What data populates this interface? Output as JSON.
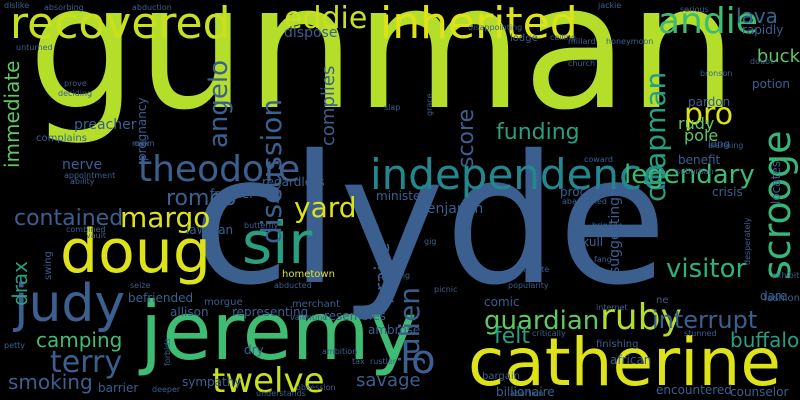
{
  "words": [
    {
      "text": "gunman",
      "color": "#b5de2b"
    },
    {
      "text": "clyde",
      "color": "#3b5f8f"
    },
    {
      "text": "jeremy",
      "color": "#3fbc73"
    },
    {
      "text": "catherine",
      "color": "#dde318"
    },
    {
      "text": "recovered",
      "color": "#c8e020"
    },
    {
      "text": "inherited",
      "color": "#dde318"
    },
    {
      "text": "sir",
      "color": "#27a082"
    },
    {
      "text": "doug",
      "color": "#dde318"
    },
    {
      "text": "judy",
      "color": "#3b5f8f"
    },
    {
      "text": "independence",
      "color": "#24868e"
    },
    {
      "text": "theodore",
      "color": "#3b5f8f"
    },
    {
      "text": "eddie",
      "color": "#c8e020"
    },
    {
      "text": "andie",
      "color": "#3fbc73"
    },
    {
      "text": "lava",
      "color": "#31688e"
    },
    {
      "text": "twelve",
      "color": "#c8e020"
    },
    {
      "text": "ruby",
      "color": "#b5de2b"
    },
    {
      "text": "scrooge",
      "color": "#35b779"
    },
    {
      "text": "visitor",
      "color": "#2db27d"
    },
    {
      "text": "guardian",
      "color": "#5ec962"
    },
    {
      "text": "interrupt",
      "color": "#3b5f8f"
    },
    {
      "text": "legendary",
      "color": "#3fbc73"
    },
    {
      "text": "terry",
      "color": "#3b5f8f"
    },
    {
      "text": "camping",
      "color": "#3fbc73"
    },
    {
      "text": "smoking",
      "color": "#3b5f8f"
    },
    {
      "text": "lo",
      "color": "#3b5f8f"
    },
    {
      "text": "felt",
      "color": "#27a082"
    },
    {
      "text": "buffalo",
      "color": "#27a082"
    },
    {
      "text": "savage",
      "color": "#3b5f8f"
    },
    {
      "text": "praise",
      "color": "#3b5f8f"
    },
    {
      "text": "julien",
      "color": "#3b5f8f"
    },
    {
      "text": "yard",
      "color": "#dde318"
    },
    {
      "text": "romeo",
      "color": "#3b5f8f"
    },
    {
      "text": "margo",
      "color": "#dde318"
    },
    {
      "text": "contained",
      "color": "#3b5f8f"
    },
    {
      "text": "drax",
      "color": "#27a082"
    },
    {
      "text": "angelo",
      "color": "#3b5f8f"
    },
    {
      "text": "discussion",
      "color": "#3b5f8f"
    },
    {
      "text": "complies",
      "color": "#3b5f8f"
    },
    {
      "text": "score",
      "color": "#3b5f8f"
    },
    {
      "text": "chapman",
      "color": "#27a082"
    },
    {
      "text": "pro",
      "color": "#dde318"
    },
    {
      "text": "funding",
      "color": "#27a082"
    },
    {
      "text": "immediate",
      "color": "#5ec962"
    },
    {
      "text": "preacher",
      "color": "#3b5f8f"
    },
    {
      "text": "nerve",
      "color": "#3b5f8f"
    },
    {
      "text": "benjamin",
      "color": "#3b5f8f"
    },
    {
      "text": "minister",
      "color": "#3b5f8f"
    },
    {
      "text": "regardless",
      "color": "#3b5f8f"
    },
    {
      "text": "frontier",
      "color": "#3b5f8f"
    },
    {
      "text": "lawman",
      "color": "#3b5f8f"
    },
    {
      "text": "befriended",
      "color": "#3b5f8f"
    },
    {
      "text": "allison",
      "color": "#3b5f8f"
    },
    {
      "text": "representing",
      "color": "#3b5f8f"
    },
    {
      "text": "resembles",
      "color": "#3b5f8f"
    },
    {
      "text": "dry",
      "color": "#3b5f8f"
    },
    {
      "text": "sympathy",
      "color": "#3b5f8f"
    },
    {
      "text": "barrier",
      "color": "#3b5f8f"
    },
    {
      "text": "hometown",
      "color": "#dde318"
    },
    {
      "text": "ambrose",
      "color": "#3b5f8f"
    },
    {
      "text": "comic",
      "color": "#3b5f8f"
    },
    {
      "text": "african",
      "color": "#3b5f8f"
    },
    {
      "text": "encountered",
      "color": "#3b5f8f"
    },
    {
      "text": "dare",
      "color": "#3b5f8f"
    },
    {
      "text": "skull",
      "color": "#3b5f8f"
    },
    {
      "text": "procedure",
      "color": "#3b5f8f"
    },
    {
      "text": "suggesting",
      "color": "#3b5f8f"
    },
    {
      "text": "crisis",
      "color": "#3b5f8f"
    },
    {
      "text": "benefit",
      "color": "#3b5f8f"
    },
    {
      "text": "rudy",
      "color": "#5ec962"
    },
    {
      "text": "pole",
      "color": "#5ec962"
    },
    {
      "text": "pardon",
      "color": "#3b5f8f"
    },
    {
      "text": "buck",
      "color": "#5ec962"
    },
    {
      "text": "potion",
      "color": "#3b5f8f"
    },
    {
      "text": "rapidly",
      "color": "#3b5f8f"
    },
    {
      "text": "lodge",
      "color": "#3b5f8f"
    },
    {
      "text": "dispose",
      "color": "#3b5f8f"
    },
    {
      "text": "billionaire",
      "color": "#3b5f8f"
    },
    {
      "text": "counselor",
      "color": "#3b5f8f"
    },
    {
      "text": "locates",
      "color": "#3b5f8f"
    },
    {
      "text": "pregnancy",
      "color": "#3b5f8f"
    },
    {
      "text": "complains",
      "color": "#3b5f8f"
    },
    {
      "text": "swing",
      "color": "#3b5f8f"
    },
    {
      "text": "morgue",
      "color": "#3b5f8f"
    },
    {
      "text": "merchant",
      "color": "#3b5f8f"
    },
    {
      "text": "adding",
      "color": "#3b5f8f"
    },
    {
      "text": "lung",
      "color": "#3b5f8f"
    },
    {
      "text": "ne",
      "color": "#3b5f8f"
    },
    {
      "text": "bargain",
      "color": "#3b5f8f"
    },
    {
      "text": "finishing",
      "color": "#3b5f8f"
    },
    {
      "text": "fashion",
      "color": "#3b5f8f"
    },
    {
      "text": "exhibit",
      "color": "#3b5f8f"
    },
    {
      "text": "valentine",
      "color": "#3b5f8f"
    },
    {
      "text": "butterfly",
      "color": "#3b5f8f"
    },
    {
      "text": "forbids",
      "color": "#3b5f8f"
    },
    {
      "text": "abandoned",
      "color": "#3b5f8f"
    },
    {
      "text": "serious",
      "color": "#3b5f8f"
    },
    {
      "text": "church",
      "color": "#3b5f8f"
    },
    {
      "text": "doubt",
      "color": "#3b5f8f"
    },
    {
      "text": "bronson",
      "color": "#3b5f8f"
    },
    {
      "text": "grace",
      "color": "#3b5f8f"
    },
    {
      "text": "ceiling",
      "color": "#3b5f8f"
    },
    {
      "text": "honeymoon",
      "color": "#3b5f8f"
    },
    {
      "text": "brigade",
      "color": "#3b5f8f"
    },
    {
      "text": "popularity",
      "color": "#3b5f8f"
    },
    {
      "text": "critically",
      "color": "#3b5f8f"
    },
    {
      "text": "abortion",
      "color": "#3b5f8f"
    },
    {
      "text": "compete",
      "color": "#3b5f8f"
    },
    {
      "text": "internet",
      "color": "#3b5f8f"
    },
    {
      "text": "stunned",
      "color": "#3b5f8f"
    },
    {
      "text": "ability",
      "color": "#3b5f8f"
    },
    {
      "text": "appointment",
      "color": "#3b5f8f"
    },
    {
      "text": "seize",
      "color": "#3b5f8f"
    },
    {
      "text": "deeper",
      "color": "#3b5f8f"
    },
    {
      "text": "abducted",
      "color": "#3b5f8f"
    },
    {
      "text": "understands",
      "color": "#3b5f8f"
    },
    {
      "text": "obsession",
      "color": "#3b5f8f"
    },
    {
      "text": "prove",
      "color": "#3b5f8f"
    },
    {
      "text": "unturned",
      "color": "#3b5f8f"
    },
    {
      "text": "deciding",
      "color": "#3b5f8f"
    },
    {
      "text": "petty",
      "color": "#3b5f8f"
    },
    {
      "text": "disappointing",
      "color": "#3b5f8f"
    },
    {
      "text": "jackie",
      "color": "#3b5f8f"
    },
    {
      "text": "millard",
      "color": "#3b5f8f"
    },
    {
      "text": "suburban",
      "color": "#3b5f8f"
    },
    {
      "text": "desperately",
      "color": "#3b5f8f"
    },
    {
      "text": "clearing",
      "color": "#3b5f8f"
    },
    {
      "text": "rustler",
      "color": "#3b5f8f"
    },
    {
      "text": "fang",
      "color": "#3b5f8f"
    },
    {
      "text": "coward",
      "color": "#3b5f8f"
    },
    {
      "text": "alarming",
      "color": "#3b5f8f"
    },
    {
      "text": "rook",
      "color": "#3b5f8f"
    },
    {
      "text": "tax",
      "color": "#3b5f8f"
    },
    {
      "text": "picnic",
      "color": "#3b5f8f"
    },
    {
      "text": "gig",
      "color": "#3b5f8f"
    },
    {
      "text": "ambition",
      "color": "#3b5f8f"
    },
    {
      "text": "vault",
      "color": "#3b5f8f"
    },
    {
      "text": "room",
      "color": "#3b5f8f"
    },
    {
      "text": "slap",
      "color": "#3b5f8f"
    },
    {
      "text": "combined",
      "color": "#3b5f8f"
    },
    {
      "text": "abduction",
      "color": "#3b5f8f"
    },
    {
      "text": "dislike",
      "color": "#3b5f8f"
    },
    {
      "text": "absorbing",
      "color": "#3b5f8f"
    }
  ]
}
